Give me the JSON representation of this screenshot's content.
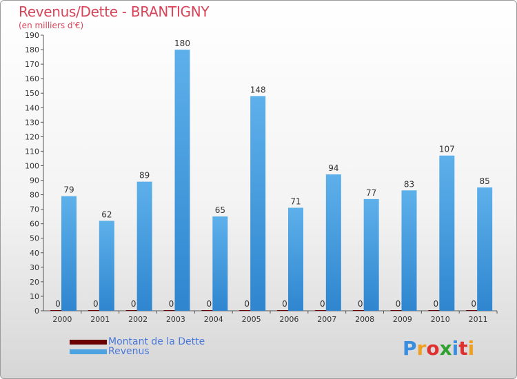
{
  "header": {
    "title": "Revenus/Dette - BRANTIGNY",
    "subtitle": "(en milliers d'€)"
  },
  "chart_data": {
    "type": "bar",
    "categories": [
      "2000",
      "2001",
      "2002",
      "2003",
      "2004",
      "2005",
      "2006",
      "2007",
      "2008",
      "2009",
      "2010",
      "2011"
    ],
    "series": [
      {
        "name": "Montant de la Dette",
        "color": "#6b0000",
        "values": [
          0,
          0,
          0,
          0,
          0,
          0,
          0,
          0,
          0,
          0,
          0,
          0
        ]
      },
      {
        "name": "Revenus",
        "color": "#4da3e0",
        "values": [
          79,
          62,
          89,
          180,
          65,
          148,
          71,
          94,
          77,
          83,
          107,
          85
        ]
      }
    ],
    "ylim": [
      0,
      190
    ],
    "ytick_step": 10,
    "grid": false,
    "legend_position": "bottom-left"
  },
  "legend": {
    "items": [
      {
        "label": "Montant de la Dette",
        "color": "#6b0000"
      },
      {
        "label": "Revenus",
        "color": "#4da3e0"
      }
    ]
  },
  "logo": {
    "letters": [
      "P",
      "r",
      "o",
      "x",
      "i",
      "t",
      "i"
    ],
    "colors": [
      "#3a8ee0",
      "#f0a020",
      "#e03030",
      "#30a030",
      "#3a8ee0",
      "#e03030",
      "#f0a020"
    ]
  }
}
